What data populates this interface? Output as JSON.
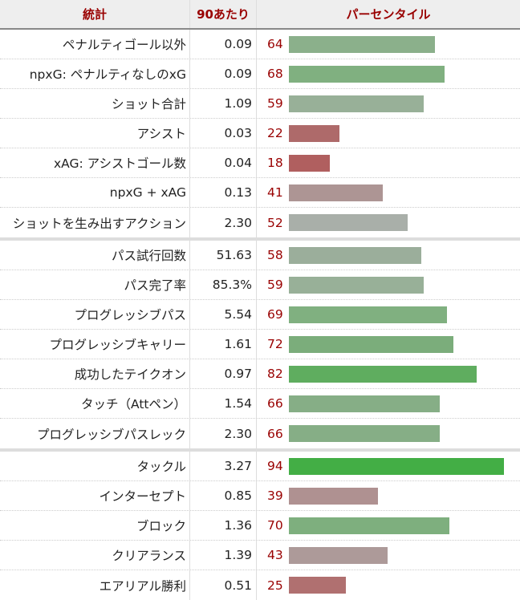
{
  "header": {
    "stat": "統計",
    "per90": "90あたり",
    "percentile": "パーセンタイル"
  },
  "colors": {
    "header_text": "#990000",
    "header_bg": "#eeeeee",
    "percentile_text": "#990000",
    "separator": "#dddddd"
  },
  "groups": [
    {
      "rows": [
        {
          "stat": "ペナルティゴール以外",
          "value": "0.09",
          "percentile": "64",
          "pct": 64,
          "color": "#8bb08b"
        },
        {
          "stat": "npxG: ペナルティなしのxG",
          "value": "0.09",
          "percentile": "68",
          "pct": 68,
          "color": "#80b080"
        },
        {
          "stat": "ショット合計",
          "value": "1.09",
          "percentile": "59",
          "pct": 59,
          "color": "#98b098"
        },
        {
          "stat": "アシスト",
          "value": "0.03",
          "percentile": "22",
          "pct": 22,
          "color": "#ae6a6a"
        },
        {
          "stat": "xAG: アシストゴール数",
          "value": "0.04",
          "percentile": "18",
          "pct": 18,
          "color": "#b05f5f"
        },
        {
          "stat": "npxG + xAG",
          "value": "0.13",
          "percentile": "41",
          "pct": 41,
          "color": "#ad9594"
        },
        {
          "stat": "ショットを生み出すアクション",
          "value": "2.30",
          "percentile": "52",
          "pct": 52,
          "color": "#a9afa9"
        }
      ]
    },
    {
      "rows": [
        {
          "stat": "パス試行回数",
          "value": "51.63",
          "percentile": "58",
          "pct": 58,
          "color": "#9bae9b"
        },
        {
          "stat": "パス完了率",
          "value": "85.3%",
          "percentile": "59",
          "pct": 59,
          "color": "#98b098"
        },
        {
          "stat": "プログレッシブパス",
          "value": "5.54",
          "percentile": "69",
          "pct": 69,
          "color": "#80b080"
        },
        {
          "stat": "プログレッシブキャリー",
          "value": "1.61",
          "percentile": "72",
          "pct": 72,
          "color": "#7bad7b"
        },
        {
          "stat": "成功したテイクオン",
          "value": "0.97",
          "percentile": "82",
          "pct": 82,
          "color": "#5fad5f"
        },
        {
          "stat": "タッチ（Attペン）",
          "value": "1.54",
          "percentile": "66",
          "pct": 66,
          "color": "#86ae86"
        },
        {
          "stat": "プログレッシブパスレック",
          "value": "2.30",
          "percentile": "66",
          "pct": 66,
          "color": "#86ae86"
        }
      ]
    },
    {
      "rows": [
        {
          "stat": "タックル",
          "value": "3.27",
          "percentile": "94",
          "pct": 94,
          "color": "#43ae45"
        },
        {
          "stat": "インターセプト",
          "value": "0.85",
          "percentile": "39",
          "pct": 39,
          "color": "#af9191"
        },
        {
          "stat": "ブロック",
          "value": "1.36",
          "percentile": "70",
          "pct": 70,
          "color": "#7eaf7e"
        },
        {
          "stat": "クリアランス",
          "value": "1.39",
          "percentile": "43",
          "pct": 43,
          "color": "#ad9a99"
        },
        {
          "stat": "エアリアル勝利",
          "value": "0.51",
          "percentile": "25",
          "pct": 25,
          "color": "#b07070"
        }
      ]
    }
  ]
}
